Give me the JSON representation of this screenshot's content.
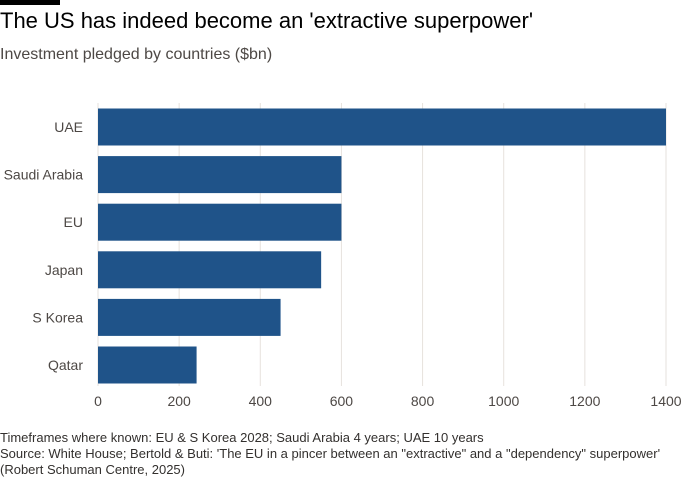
{
  "header": {
    "title": "The US has indeed become an 'extractive superpower'",
    "subtitle": "Investment pledged by countries ($bn)"
  },
  "footer": {
    "note": "Timeframes where known: EU & S Korea 2028; Saudi Arabia 4 years; UAE 10 years",
    "source": "Source: White House; Bertold & Buti: 'The EU in a pincer between an \"extractive\" and a \"dependency\" superpower' (Robert Schuman Centre, 2025)"
  },
  "colors": {
    "bar": "#1f5389",
    "grid": "#e6e2dd",
    "tick_text": "#4d4845",
    "accent_rule": "#000000"
  },
  "chart_data": {
    "type": "bar",
    "orientation": "horizontal",
    "title": "The US has indeed become an 'extractive superpower'",
    "subtitle": "Investment pledged by countries ($bn)",
    "categories": [
      "UAE",
      "Saudi Arabia",
      "EU",
      "Japan",
      "S Korea",
      "Qatar"
    ],
    "values": [
      1400,
      600,
      600,
      550,
      450,
      243
    ],
    "xlim": [
      0,
      1400
    ],
    "xticks": [
      0,
      200,
      400,
      600,
      800,
      1000,
      1200,
      1400
    ],
    "xlabel": "",
    "ylabel": "",
    "grid": true,
    "legend": "none"
  }
}
